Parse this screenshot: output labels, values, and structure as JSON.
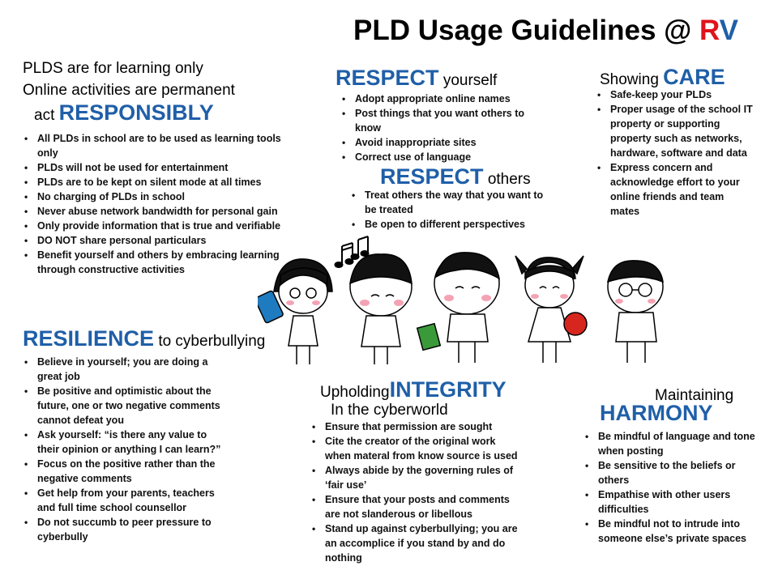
{
  "title": {
    "text": "PLD Usage Guidelines @ ",
    "r": "R",
    "v": "V"
  },
  "responsibly": {
    "line1": "PLDS are for learning only",
    "line2": "Online activities are permanent",
    "pre": "act",
    "big": "RESPONSIBLY",
    "items": [
      "All PLDs in school are to be used as learning tools only",
      "PLDs will not be used for entertainment",
      "PLDs are to be kept on silent mode at all times",
      "No charging of PLDs in school",
      "Never abuse network bandwidth for personal gain",
      "Only provide information that is true and verifiable",
      "DO NOT share personal particulars",
      "Benefit yourself and others by embracing learning through constructive activities"
    ]
  },
  "respect_yourself": {
    "big": "RESPECT",
    "small": "yourself",
    "items": [
      "Adopt appropriate online names",
      "Post things that you want others to know",
      "Avoid inappropriate sites",
      "Correct use of language"
    ]
  },
  "respect_others": {
    "big": "RESPECT",
    "small": "others",
    "items": [
      "Treat others the way that you want to be treated",
      "Be open to different perspectives"
    ]
  },
  "care": {
    "pre": "Showing",
    "big": "CARE",
    "items": [
      "Safe-keep your PLDs",
      "Proper usage of the school IT property or supporting property such as networks, hardware, software and data",
      "Express concern and acknowledge effort to your online friends and team mates"
    ]
  },
  "resilience": {
    "big": "RESILIENCE",
    "small": "to cyberbullying",
    "items": [
      "Believe in yourself; you are doing a great job",
      "Be positive and optimistic about the future, one or two negative comments cannot defeat you",
      "Ask yourself: “is there any value to their opinion or anything I can learn?”",
      "Focus on the positive rather than the negative comments",
      "Get help from your parents, teachers and full time school counsellor",
      "Do not succumb to peer pressure to cyberbully"
    ]
  },
  "integrity": {
    "pre": "Upholding",
    "big": "INTEGRITY",
    "post": "In the cyberworld",
    "items": [
      "Ensure that permission are sought",
      "Cite the creator of the original work when materal from know source is used",
      "Always abide by the governing rules of ‘fair use’",
      "Ensure that your posts and comments are not slanderous or libellous",
      "Stand up against cyberbullying; you are an accomplice if you stand by and do nothing"
    ]
  },
  "harmony": {
    "pre": "Maintaining",
    "big": "HARMONY",
    "items": [
      "Be mindful of language and tone when posting",
      "Be sensitive to the beliefs or others",
      "Empathise with other users difficulties",
      "Be mindful not to intrude into someone else’s private spaces"
    ]
  },
  "colors": {
    "accent_blue": "#1f5fa8",
    "accent_red": "#e0131b"
  },
  "illustration": {
    "icon": "students-cartoon-illustration"
  }
}
